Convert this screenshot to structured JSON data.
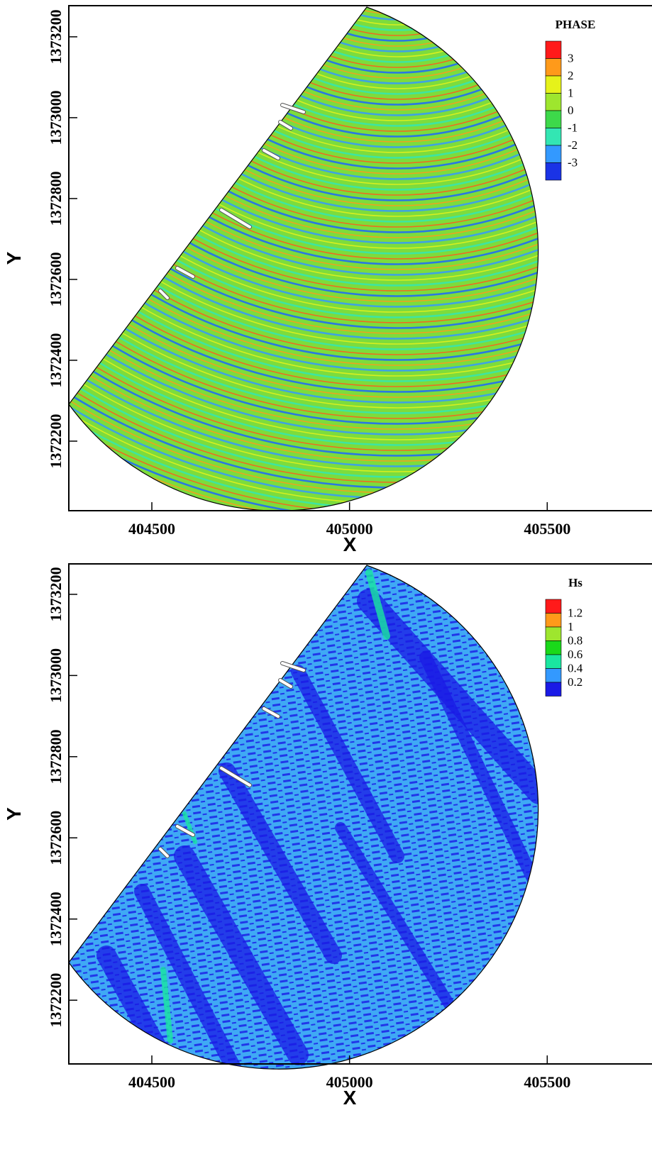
{
  "chart_data": [
    {
      "type": "contour",
      "legend_title": "PHASE",
      "xlabel": "X",
      "ylabel": "Y",
      "xlim": [
        404290,
        405765
      ],
      "ylim": [
        1372028,
        1373277
      ],
      "xticks": [
        404500,
        405000,
        405500
      ],
      "yticks": [
        1372200,
        1372400,
        1372600,
        1372800,
        1373000,
        1373200
      ],
      "levels": [
        3,
        2,
        1,
        0,
        -1,
        -2,
        -3
      ],
      "colors": [
        "#ff1a1a",
        "#ff9a1a",
        "#e6f21a",
        "#9ee62e",
        "#3dd94a",
        "#33e6b3",
        "#3399ff",
        "#1a33e6"
      ]
    },
    {
      "type": "contour",
      "legend_title": "Hs",
      "xlabel": "X",
      "ylabel": "Y",
      "xlim": [
        404290,
        405765
      ],
      "ylim": [
        1372043,
        1373275
      ],
      "xticks": [
        404500,
        405000,
        405500
      ],
      "yticks": [
        1372200,
        1372400,
        1372600,
        1372800,
        1373000,
        1373200
      ],
      "levels": [
        1.2,
        1,
        0.8,
        0.6,
        0.4,
        0.2
      ],
      "colors": [
        "#ff1a1a",
        "#ff9a1a",
        "#9ee62e",
        "#1ad91a",
        "#1ae6a0",
        "#3399ff",
        "#1a1ae6"
      ]
    }
  ]
}
